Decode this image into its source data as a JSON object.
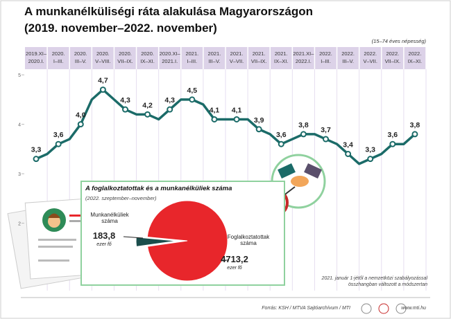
{
  "title": "A munkanélküliségi ráta alakulása Magyarországon",
  "subtitle": "(2019. november–2022. november)",
  "population_note": "(15–74 éves népesség)",
  "method_note": "2021. január 1-jétől a nemzetközi szabályozással összhangban változott a módszertan",
  "source": "Forrás: KSH / MTVA Sajtóarchívum / MTI",
  "website": "www.mti.hu",
  "chart_data": [
    {
      "type": "line",
      "categories": [
        [
          "2019.XI–",
          "2020.I."
        ],
        null,
        [
          "2020.",
          "I–III."
        ],
        null,
        [
          "2020.",
          "III–V."
        ],
        null,
        [
          "2020.",
          "V–VIII."
        ],
        null,
        [
          "2020.",
          "VII–IX."
        ],
        null,
        [
          "2020.",
          "IX–XI."
        ],
        null,
        [
          "2020.XI–",
          "2021.I."
        ],
        null,
        [
          "2021.",
          "I–III."
        ],
        null,
        [
          "2021.",
          "III–V."
        ],
        null,
        [
          "2021.",
          "V–VII."
        ],
        null,
        [
          "2021.",
          "VII–IX."
        ],
        null,
        [
          "2021.",
          "IX–XI."
        ],
        null,
        [
          "2021.XI–",
          "2022.I."
        ],
        null,
        [
          "2022.",
          "I–III."
        ],
        null,
        [
          "2022.",
          "III–V."
        ],
        null,
        [
          "2022.",
          "V–VII."
        ],
        null,
        [
          "2022.",
          "VII–IX."
        ],
        null,
        [
          "2022.",
          "IX–XI."
        ]
      ],
      "values": [
        3.3,
        3.4,
        3.6,
        3.7,
        4.0,
        4.5,
        4.7,
        4.5,
        4.3,
        4.2,
        4.2,
        4.1,
        4.3,
        4.5,
        4.5,
        4.4,
        4.1,
        4.1,
        4.1,
        4.1,
        3.9,
        3.8,
        3.6,
        3.7,
        3.8,
        3.8,
        3.7,
        3.6,
        3.4,
        3.2,
        3.3,
        3.4,
        3.6,
        3.6,
        3.8
      ],
      "value_labels": [
        "3,3",
        null,
        "3,6",
        null,
        "4,0",
        null,
        "4,7",
        null,
        "4,3",
        null,
        "4,2",
        null,
        "4,3",
        null,
        "4,5",
        null,
        "4,1",
        null,
        "4,1",
        null,
        "3,9",
        null,
        "3,6",
        null,
        "3,8",
        null,
        "3,7",
        null,
        "3,4",
        null,
        "3,3",
        null,
        "3,6",
        null,
        "3,8"
      ],
      "color": "#1b6b68",
      "ylim": [
        1,
        5.1
      ],
      "yticks": [
        2,
        3,
        4,
        5
      ]
    },
    {
      "type": "pie",
      "title": "A foglalkoztatottak és a munkanélküliek száma",
      "subtitle": "(2022. szeptember–november)",
      "categories": [
        "Munkanélküliek száma",
        "Foglalkoztatottak száma"
      ],
      "values": [
        183.8,
        4713.2
      ],
      "value_labels": [
        "183,8",
        "4713,2"
      ],
      "units": [
        "ezer fő",
        "ezer fő"
      ],
      "colors": [
        "#1b4e4c",
        "#e8262b"
      ]
    }
  ]
}
